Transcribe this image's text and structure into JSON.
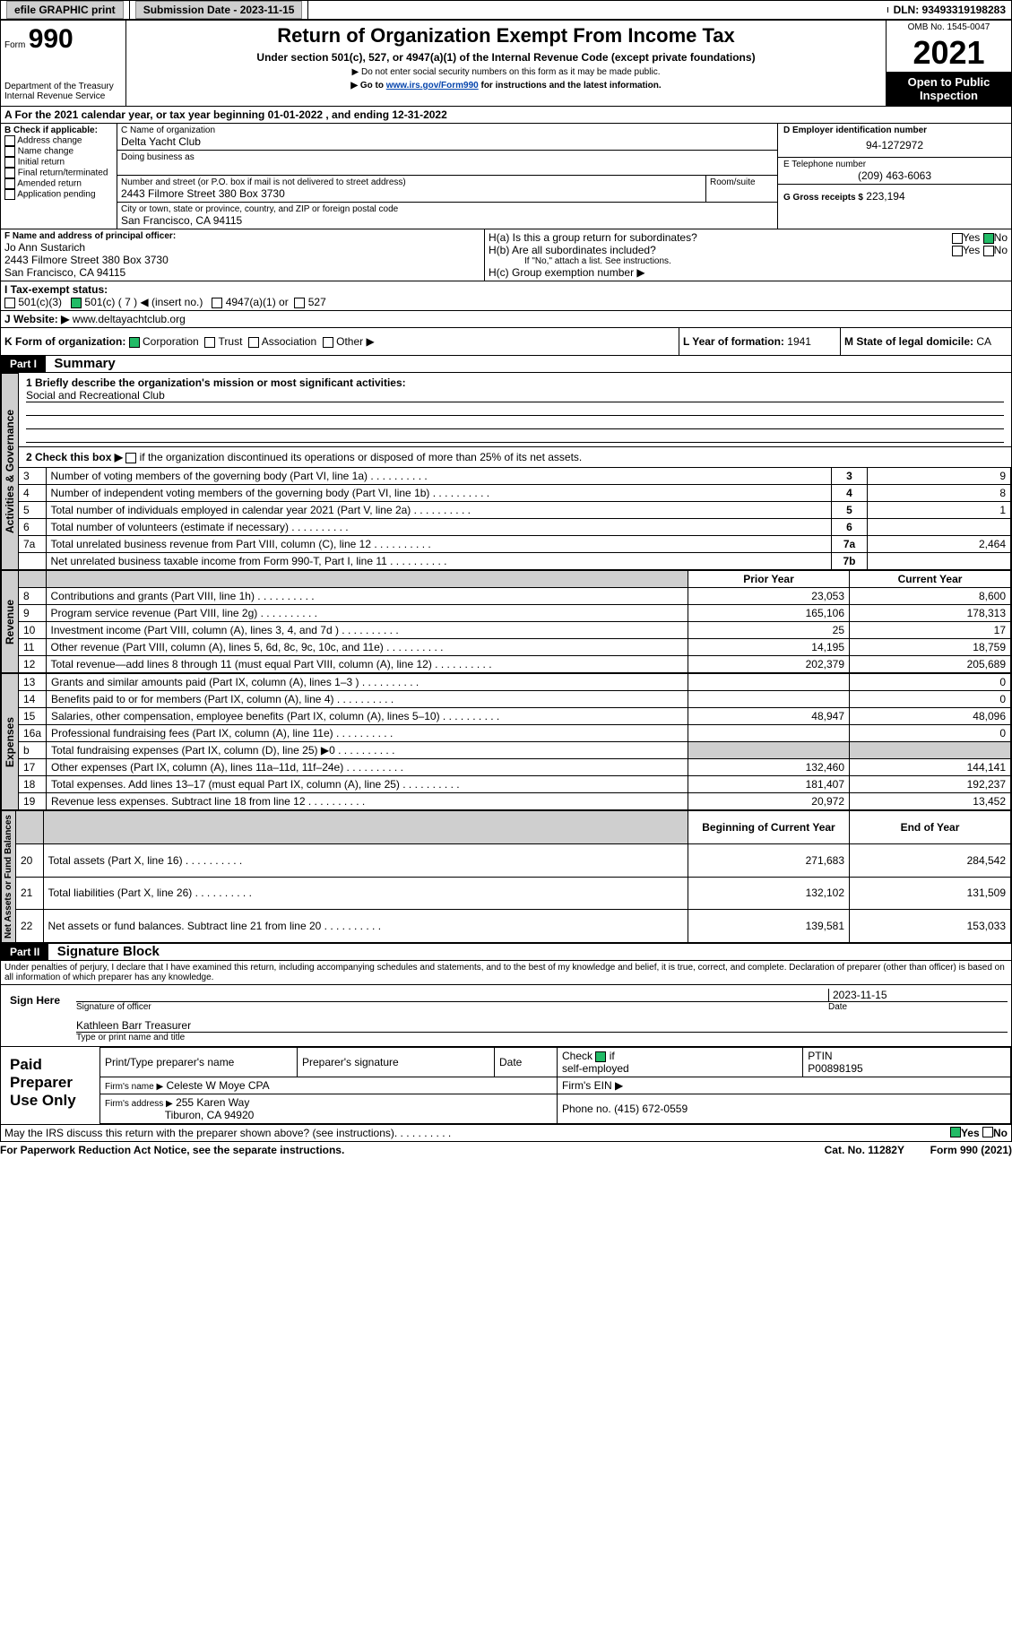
{
  "topbar": {
    "efile": "efile GRAPHIC print",
    "subdate_label": "Submission Date - 2023-11-15",
    "dln": "DLN: 93493319198283"
  },
  "header": {
    "form": "Form",
    "form_num": "990",
    "title": "Return of Organization Exempt From Income Tax",
    "subtitle": "Under section 501(c), 527, or 4947(a)(1) of the Internal Revenue Code (except private foundations)",
    "note1": "▶ Do not enter social security numbers on this form as it may be made public.",
    "note2_pre": "▶ Go to ",
    "note2_link": "www.irs.gov/Form990",
    "note2_post": " for instructions and the latest information.",
    "dept": "Department of the Treasury",
    "irs": "Internal Revenue Service",
    "omb": "OMB No. 1545-0047",
    "year": "2021",
    "open": "Open to Public Inspection"
  },
  "A": {
    "line": "A For the 2021 calendar year, or tax year beginning 01-01-2022   , and ending 12-31-2022"
  },
  "B": {
    "label": "B Check if applicable:",
    "items": [
      "Address change",
      "Name change",
      "Initial return",
      "Final return/terminated",
      "Amended return",
      "Application pending"
    ]
  },
  "C": {
    "name_label": "C Name of organization",
    "name": "Delta Yacht Club",
    "dba_label": "Doing business as",
    "addr_label": "Number and street (or P.O. box if mail is not delivered to street address)",
    "room_label": "Room/suite",
    "addr": "2443 Filmore Street 380 Box 3730",
    "city_label": "City or town, state or province, country, and ZIP or foreign postal code",
    "city": "San Francisco, CA  94115"
  },
  "D": {
    "label": "D Employer identification number",
    "value": "94-1272972"
  },
  "E": {
    "label": "E Telephone number",
    "value": "(209) 463-6063"
  },
  "G": {
    "label": "G Gross receipts $",
    "value": "223,194"
  },
  "F": {
    "label": "F  Name and address of principal officer:",
    "name": "Jo Ann Sustarich",
    "addr1": "2443 Filmore Street 380 Box 3730",
    "addr2": "San Francisco, CA  94115"
  },
  "H": {
    "a": "H(a)  Is this a group return for subordinates?",
    "b": "H(b)  Are all subordinates included?",
    "b_note": "If \"No,\" attach a list. See instructions.",
    "c": "H(c)  Group exemption number ▶",
    "yes": "Yes",
    "no": "No"
  },
  "I": {
    "label": "I  Tax-exempt status:",
    "c3": "501(c)(3)",
    "c7": "501(c) ( 7 ) ◀ (insert no.)",
    "a4947": "4947(a)(1) or",
    "s527": "527"
  },
  "J": {
    "label": "J  Website: ▶",
    "value": "www.deltayachtclub.org"
  },
  "K": {
    "label": "K Form of organization:",
    "corp": "Corporation",
    "trust": "Trust",
    "assoc": "Association",
    "other": "Other ▶"
  },
  "L": {
    "label": "L Year of formation:",
    "value": "1941"
  },
  "M": {
    "label": "M State of legal domicile:",
    "value": "CA"
  },
  "part1": {
    "hdr": "Part I",
    "title": "Summary",
    "q1": "1  Briefly describe the organization's mission or most significant activities:",
    "q1v": "Social and Recreational Club",
    "q2": "2   Check this box ▶",
    "q2b": "if the organization discontinued its operations or disposed of more than 25% of its net assets.",
    "rows_gov": [
      {
        "n": "3",
        "t": "Number of voting members of the governing body (Part VI, line 1a)",
        "rn": "3",
        "v": "9"
      },
      {
        "n": "4",
        "t": "Number of independent voting members of the governing body (Part VI, line 1b)",
        "rn": "4",
        "v": "8"
      },
      {
        "n": "5",
        "t": "Total number of individuals employed in calendar year 2021 (Part V, line 2a)",
        "rn": "5",
        "v": "1"
      },
      {
        "n": "6",
        "t": "Total number of volunteers (estimate if necessary)",
        "rn": "6",
        "v": ""
      },
      {
        "n": "7a",
        "t": "Total unrelated business revenue from Part VIII, column (C), line 12",
        "rn": "7a",
        "v": "2,464"
      },
      {
        "n": "",
        "t": "Net unrelated business taxable income from Form 990-T, Part I, line 11",
        "rn": "7b",
        "v": ""
      }
    ],
    "col_prior": "Prior Year",
    "col_curr": "Current Year",
    "rows_rev": [
      {
        "n": "8",
        "t": "Contributions and grants (Part VIII, line 1h)",
        "p": "23,053",
        "c": "8,600"
      },
      {
        "n": "9",
        "t": "Program service revenue (Part VIII, line 2g)",
        "p": "165,106",
        "c": "178,313"
      },
      {
        "n": "10",
        "t": "Investment income (Part VIII, column (A), lines 3, 4, and 7d )",
        "p": "25",
        "c": "17"
      },
      {
        "n": "11",
        "t": "Other revenue (Part VIII, column (A), lines 5, 6d, 8c, 9c, 10c, and 11e)",
        "p": "14,195",
        "c": "18,759"
      },
      {
        "n": "12",
        "t": "Total revenue—add lines 8 through 11 (must equal Part VIII, column (A), line 12)",
        "p": "202,379",
        "c": "205,689"
      }
    ],
    "rows_exp": [
      {
        "n": "13",
        "t": "Grants and similar amounts paid (Part IX, column (A), lines 1–3 )",
        "p": "",
        "c": "0"
      },
      {
        "n": "14",
        "t": "Benefits paid to or for members (Part IX, column (A), line 4)",
        "p": "",
        "c": "0"
      },
      {
        "n": "15",
        "t": "Salaries, other compensation, employee benefits (Part IX, column (A), lines 5–10)",
        "p": "48,947",
        "c": "48,096"
      },
      {
        "n": "16a",
        "t": "Professional fundraising fees (Part IX, column (A), line 11e)",
        "p": "",
        "c": "0"
      },
      {
        "n": "b",
        "t": "Total fundraising expenses (Part IX, column (D), line 25) ▶0",
        "p": "__shade__",
        "c": "__shade__"
      },
      {
        "n": "17",
        "t": "Other expenses (Part IX, column (A), lines 11a–11d, 11f–24e)",
        "p": "132,460",
        "c": "144,141"
      },
      {
        "n": "18",
        "t": "Total expenses. Add lines 13–17 (must equal Part IX, column (A), line 25)",
        "p": "181,407",
        "c": "192,237"
      },
      {
        "n": "19",
        "t": "Revenue less expenses. Subtract line 18 from line 12",
        "p": "20,972",
        "c": "13,452"
      }
    ],
    "col_beg": "Beginning of Current Year",
    "col_end": "End of Year",
    "rows_net": [
      {
        "n": "20",
        "t": "Total assets (Part X, line 16)",
        "p": "271,683",
        "c": "284,542"
      },
      {
        "n": "21",
        "t": "Total liabilities (Part X, line 26)",
        "p": "132,102",
        "c": "131,509"
      },
      {
        "n": "22",
        "t": "Net assets or fund balances. Subtract line 21 from line 20",
        "p": "139,581",
        "c": "153,033"
      }
    ],
    "tabs": {
      "gov": "Activities & Governance",
      "rev": "Revenue",
      "exp": "Expenses",
      "net": "Net Assets or Fund Balances"
    }
  },
  "part2": {
    "hdr": "Part II",
    "title": "Signature Block",
    "declaration": "Under penalties of perjury, I declare that I have examined this return, including accompanying schedules and statements, and to the best of my knowledge and belief, it is true, correct, and complete. Declaration of preparer (other than officer) is based on all information of which preparer has any knowledge."
  },
  "sign": {
    "here": "Sign Here",
    "sig_officer": "Signature of officer",
    "date": "Date",
    "date_val": "2023-11-15",
    "name": "Kathleen Barr  Treasurer",
    "name_label": "Type or print name and title"
  },
  "paid": {
    "title": "Paid Preparer Use Only",
    "print_name": "Print/Type preparer's name",
    "prep_sig": "Preparer's signature",
    "date": "Date",
    "check": "Check",
    "if": "if",
    "self": "self-employed",
    "ptin": "PTIN",
    "ptin_val": "P00898195",
    "firm_name": "Firm's name   ▶",
    "firm_name_val": "Celeste W Moye CPA",
    "firm_ein": "Firm's EIN ▶",
    "firm_addr": "Firm's address ▶",
    "firm_addr_val": "255 Karen Way",
    "firm_city": "Tiburon, CA  94920",
    "phone": "Phone no.",
    "phone_val": "(415) 672-0559"
  },
  "footer": {
    "discuss": "May the IRS discuss this return with the preparer shown above? (see instructions)",
    "paperwork": "For Paperwork Reduction Act Notice, see the separate instructions.",
    "cat": "Cat. No. 11282Y",
    "form": "Form 990 (2021)",
    "yes": "Yes",
    "no": "No"
  }
}
